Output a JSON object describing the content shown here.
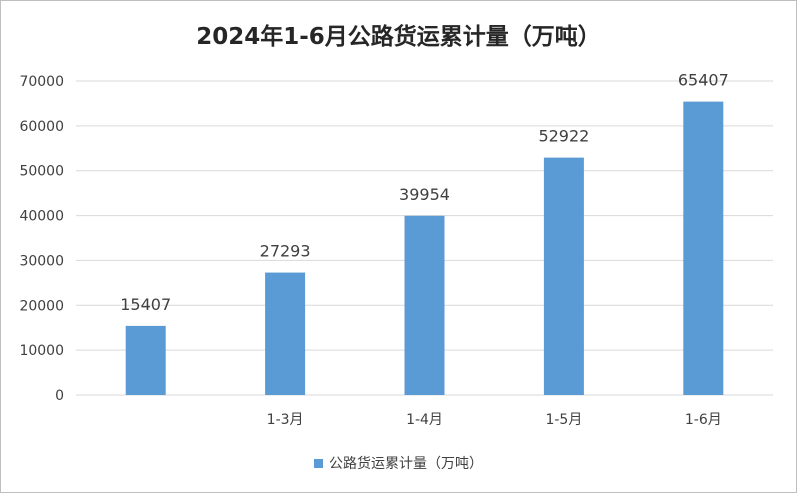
{
  "chart_data": {
    "type": "bar",
    "title": "2024年1-6月公路货运累计量（万吨）",
    "categories": [
      "",
      "1-3月",
      "1-4月",
      "1-5月",
      "1-6月"
    ],
    "series": [
      {
        "name": "公路货运累计量（万吨）",
        "values": [
          15407,
          27293,
          39954,
          52922,
          65407
        ]
      }
    ],
    "data_labels": [
      "15407",
      "27293",
      "39954",
      "52922",
      "65407"
    ],
    "y_ticks": [
      "0",
      "10000",
      "20000",
      "30000",
      "40000",
      "50000",
      "60000",
      "70000"
    ],
    "ylim": [
      0,
      70000
    ],
    "xlabel": "",
    "ylabel": "",
    "grid": true,
    "legend_position": "bottom",
    "colors": {
      "bar": "#5b9bd5",
      "grid": "#d9d9d9",
      "text": "#404040"
    }
  }
}
